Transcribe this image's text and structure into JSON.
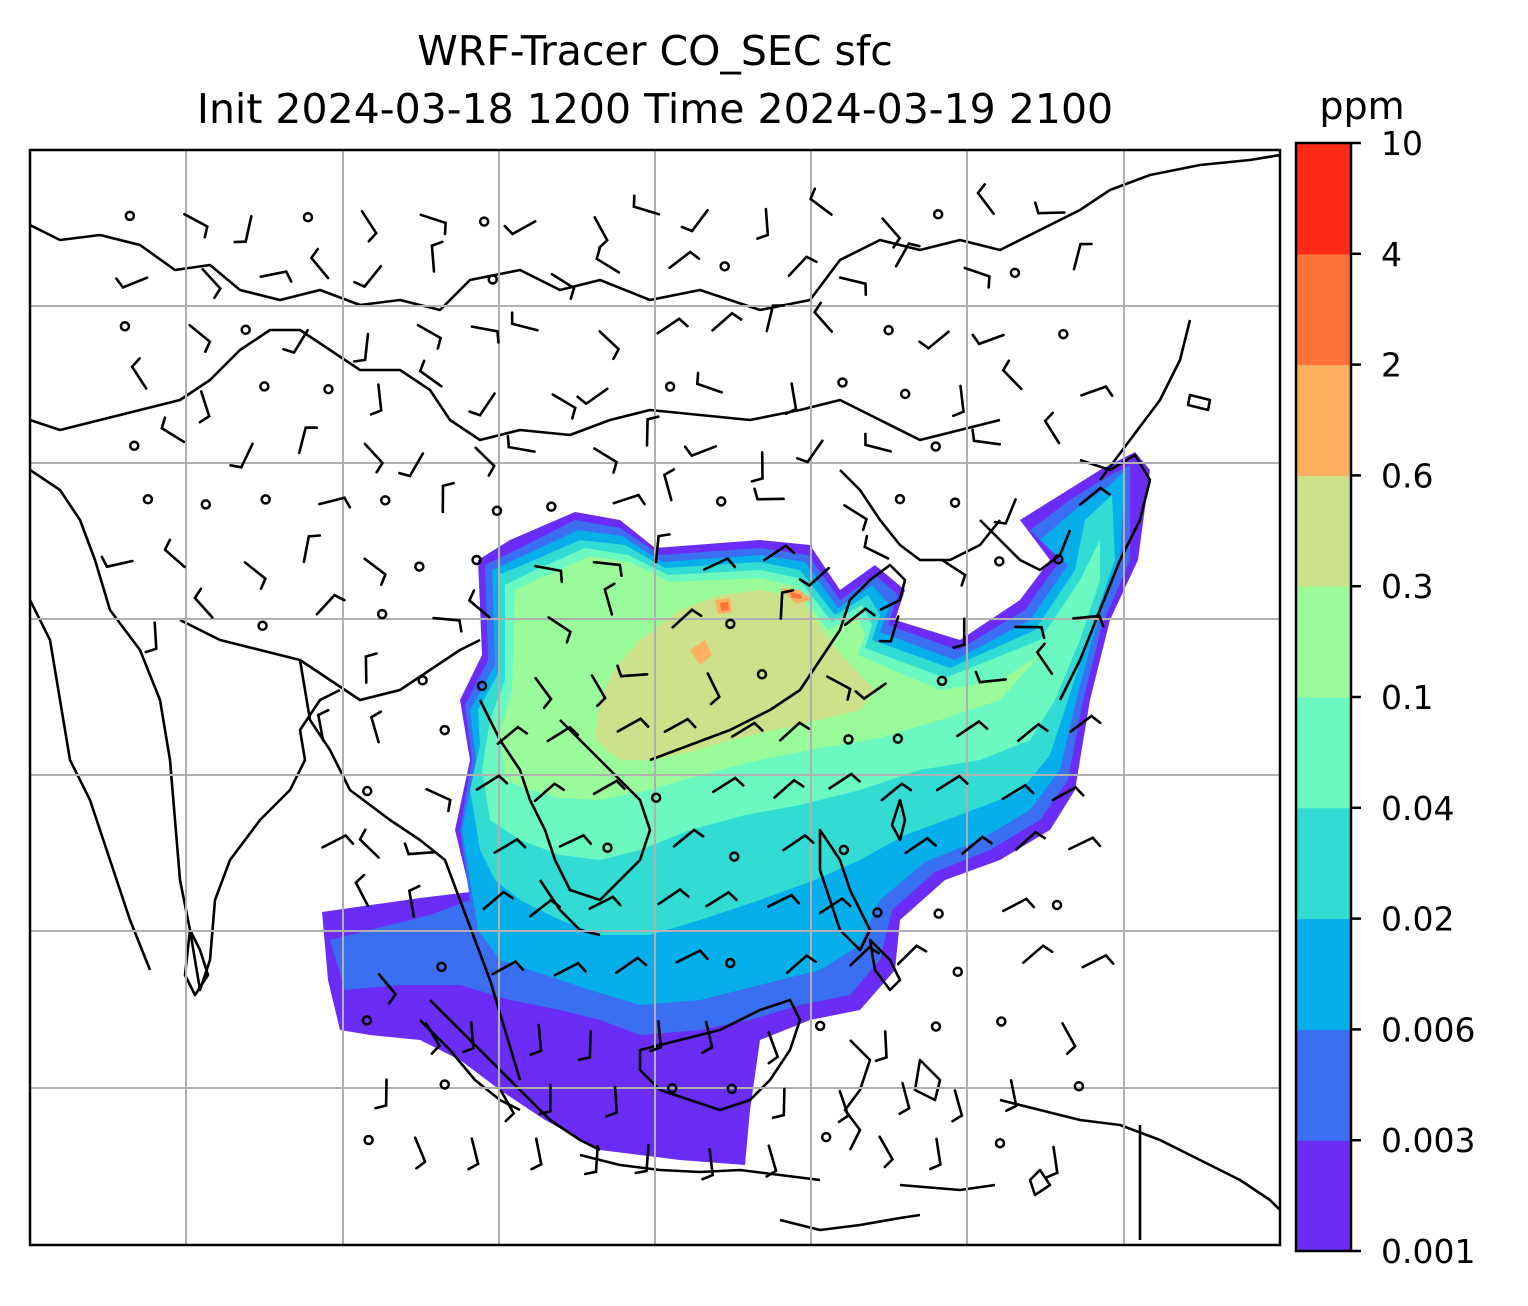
{
  "title": {
    "line1": "WRF-Tracer CO_SEC sfc",
    "line2": "Init 2024-03-18 1200 Time 2024-03-19 2100"
  },
  "colorbar": {
    "unit": "ppm",
    "levels": [
      {
        "label": "0.001",
        "color": "#6b2cf6"
      },
      {
        "label": "0.003",
        "color": "#3a6ff2"
      },
      {
        "label": "0.006",
        "color": "#06aeea"
      },
      {
        "label": "0.02",
        "color": "#33dcd2"
      },
      {
        "label": "0.04",
        "color": "#6bf8c1"
      },
      {
        "label": "0.1",
        "color": "#9afb9a"
      },
      {
        "label": "0.3",
        "color": "#cde08a"
      },
      {
        "label": "0.6",
        "color": "#fdb05f"
      },
      {
        "label": "2",
        "color": "#ff713b"
      },
      {
        "label": "4",
        "color": "#ff2a16"
      },
      {
        "label": "10",
        "color": ""
      }
    ]
  },
  "map": {
    "gridlines": true,
    "coastlines": true,
    "wind_barbs": true,
    "field": "CO_SEC surface tracer concentration"
  }
}
